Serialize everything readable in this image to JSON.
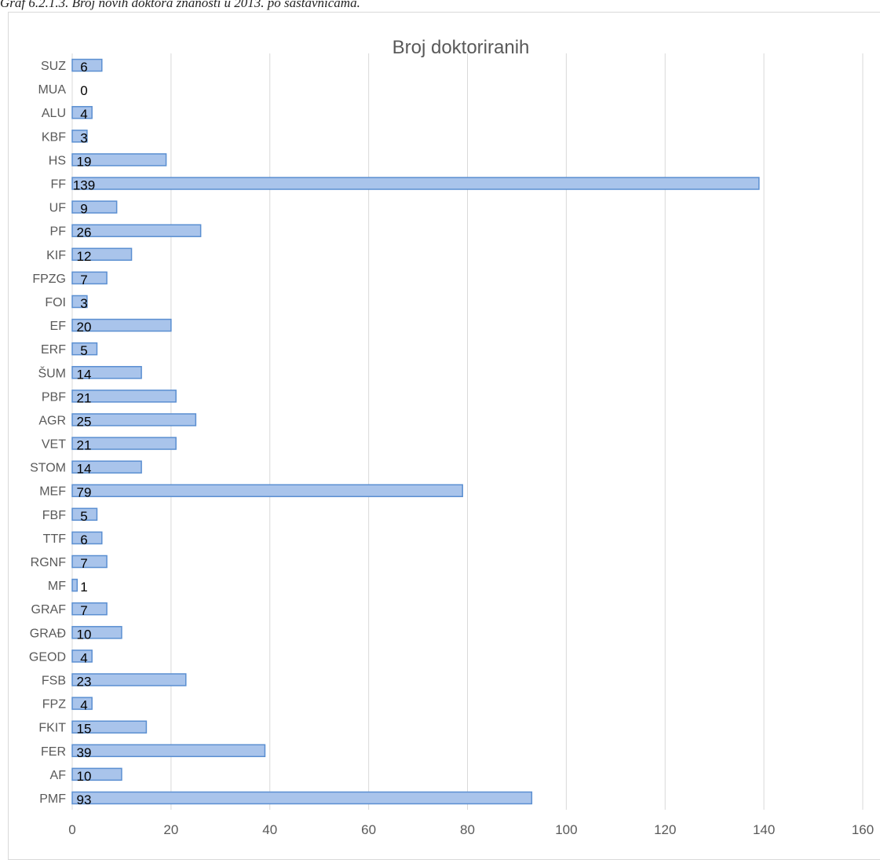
{
  "caption": "Graf 6.2.1.3. Broj novih doktora znanosti u 2013. po sastavnicama.",
  "colors": {
    "bar_fill": "#a9c4eb",
    "bar_stroke": "#5b8fd1",
    "grid": "#d9d9d9",
    "text": "#595959"
  },
  "chart_data": {
    "type": "bar",
    "orientation": "horizontal",
    "title": "Broj doktoriranih",
    "xlabel": "",
    "ylabel": "",
    "xlim": [
      0,
      160
    ],
    "x_ticks": [
      0,
      20,
      40,
      60,
      80,
      100,
      120,
      140,
      160
    ],
    "grid": true,
    "legend": "none",
    "categories": [
      "SUZ",
      "MUA",
      "ALU",
      "KBF",
      "HS",
      "FF",
      "UF",
      "PF",
      "KIF",
      "FPZG",
      "FOI",
      "EF",
      "ERF",
      "ŠUM",
      "PBF",
      "AGR",
      "VET",
      "STOM",
      "MEF",
      "FBF",
      "TTF",
      "RGNF",
      "MF",
      "GRAF",
      "GRAĐ",
      "GEOD",
      "FSB",
      "FPZ",
      "FKIT",
      "FER",
      "AF",
      "PMF"
    ],
    "values": [
      6,
      0,
      4,
      3,
      19,
      139,
      9,
      26,
      12,
      7,
      3,
      20,
      5,
      14,
      21,
      25,
      21,
      14,
      79,
      5,
      6,
      7,
      1,
      7,
      10,
      4,
      23,
      4,
      15,
      39,
      10,
      93
    ]
  }
}
